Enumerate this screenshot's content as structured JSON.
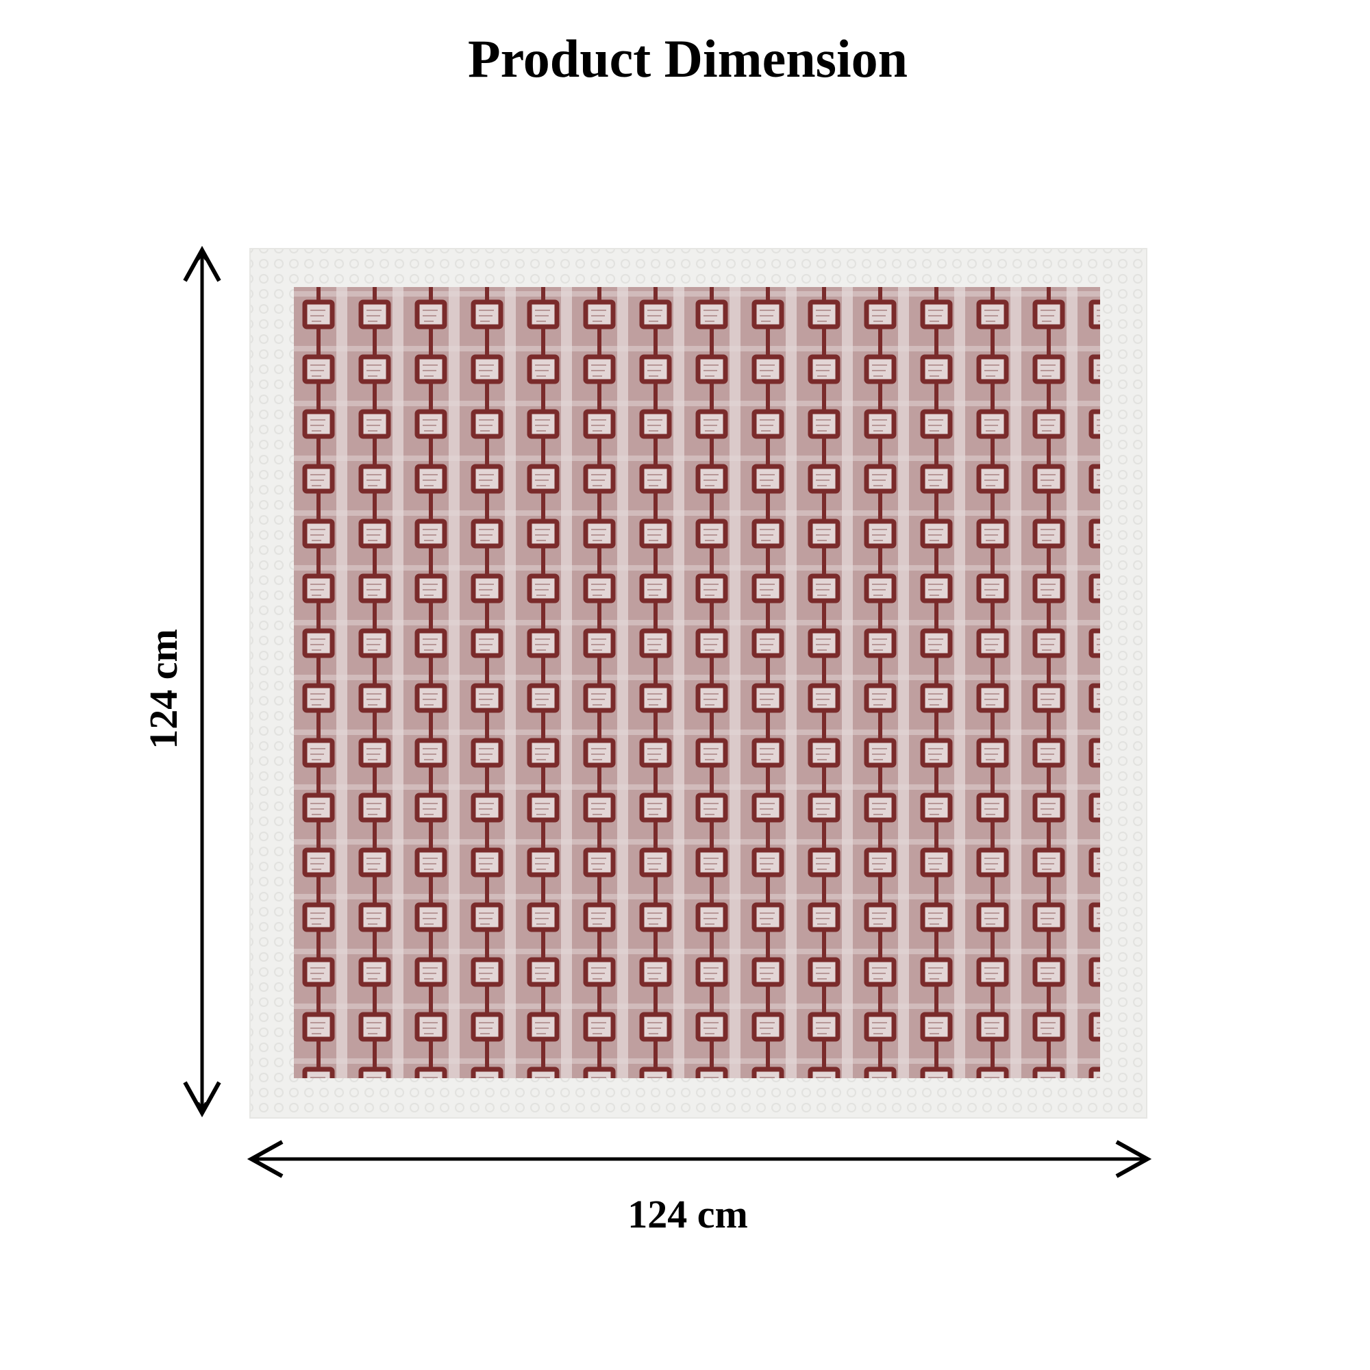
{
  "header": {
    "title": "Product Dimension"
  },
  "dimensions": {
    "height": "124 cm",
    "width": "124 cm"
  }
}
